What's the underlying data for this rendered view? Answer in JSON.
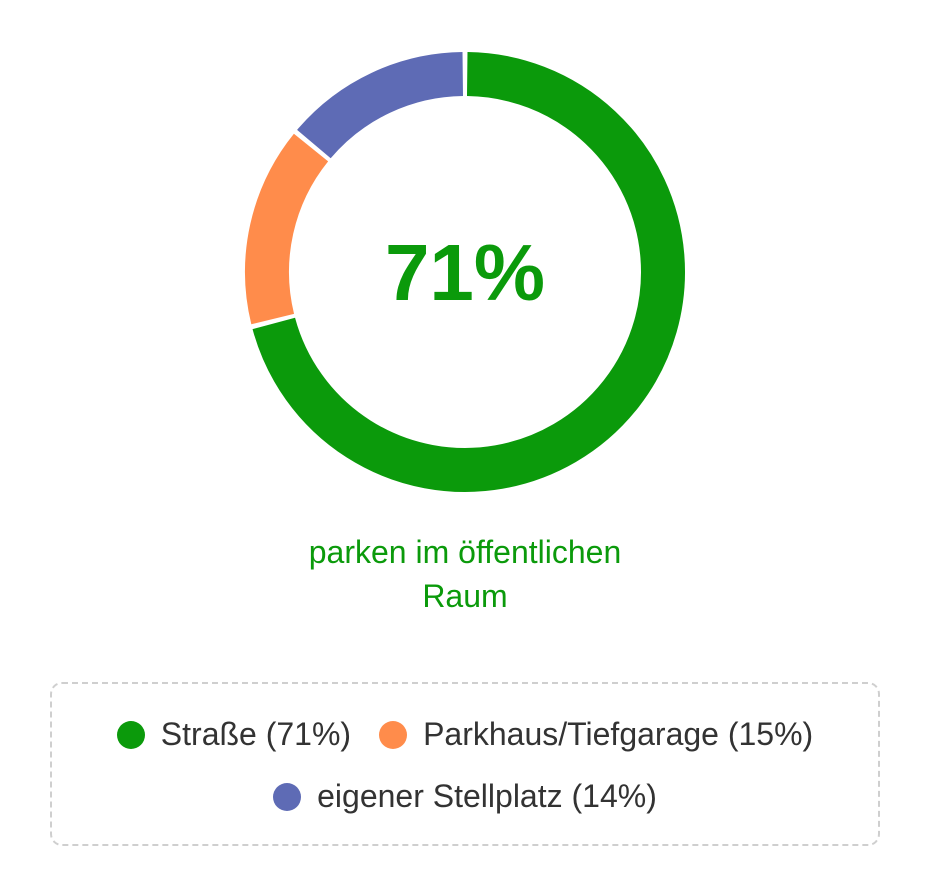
{
  "chart_data": {
    "type": "pie",
    "variant": "donut",
    "center_label": "71%",
    "center_label_color": "#0b9a0b",
    "caption_lines": [
      "parken im öffentlichen",
      "Raum"
    ],
    "categories": [
      "Straße",
      "Parkhaus/Tiefgarage",
      "eigener Stellplatz"
    ],
    "values": [
      71,
      15,
      14
    ],
    "unit": "%",
    "colors": [
      "#0b9a0b",
      "#ff8c4b",
      "#5e6bb5"
    ],
    "legend": {
      "placement": "bottom",
      "rows": [
        [
          {
            "label": "Straße (71%)",
            "color": "#0b9a0b"
          },
          {
            "label": "Parkhaus/Tiefgarage (15%)",
            "color": "#ff8c4b"
          }
        ],
        [
          {
            "label": "eigener Stellplatz (14%)",
            "color": "#5e6bb5"
          }
        ]
      ]
    }
  }
}
